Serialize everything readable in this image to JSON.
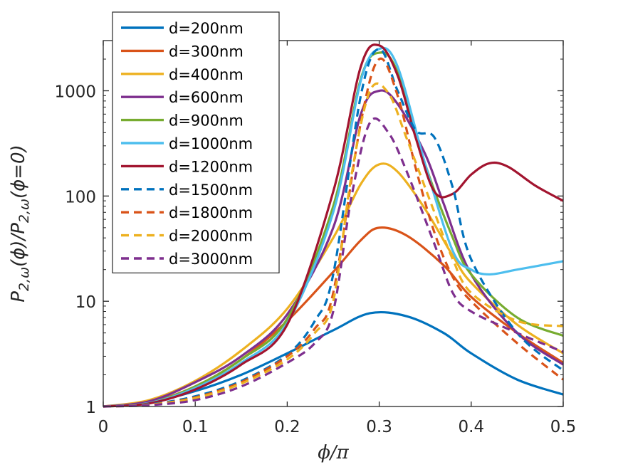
{
  "chart_data": {
    "type": "line",
    "yscale": "log",
    "xlim": [
      0,
      0.5
    ],
    "ylim": [
      1,
      3000
    ],
    "xticks": [
      0,
      0.1,
      0.2,
      0.3,
      0.4,
      0.5
    ],
    "xtick_labels": [
      "0",
      "0.1",
      "0.2",
      "0.3",
      "0.4",
      "0.5"
    ],
    "yticks": [
      1,
      10,
      100,
      1000
    ],
    "ytick_labels": [
      "1",
      "10",
      "100",
      "1000"
    ],
    "xlabel": "ϕ/π",
    "ylabel": "P2,ω(ϕ)/P2,ω(ϕ=0)",
    "legend_position": "top-left",
    "series": [
      {
        "name": "d=200nm",
        "color": "#0072BD",
        "dash": "solid",
        "x": [
          0,
          0.05,
          0.1,
          0.15,
          0.2,
          0.25,
          0.29,
          0.33,
          0.37,
          0.4,
          0.45,
          0.5
        ],
        "y": [
          1,
          1.1,
          1.4,
          2.0,
          3.2,
          5.3,
          7.7,
          7.2,
          5.0,
          3.2,
          1.8,
          1.3
        ]
      },
      {
        "name": "d=300nm",
        "color": "#D95319",
        "dash": "solid",
        "x": [
          0,
          0.05,
          0.1,
          0.15,
          0.2,
          0.25,
          0.28,
          0.3,
          0.33,
          0.37,
          0.4,
          0.45,
          0.5
        ],
        "y": [
          1,
          1.1,
          1.55,
          2.8,
          6.5,
          19,
          38,
          50,
          42,
          22,
          11,
          5,
          2.6
        ]
      },
      {
        "name": "d=400nm",
        "color": "#EDB120",
        "dash": "solid",
        "x": [
          0,
          0.05,
          0.1,
          0.15,
          0.2,
          0.25,
          0.28,
          0.3,
          0.32,
          0.35,
          0.38,
          0.4,
          0.45,
          0.5
        ],
        "y": [
          1,
          1.15,
          1.75,
          3.4,
          8.5,
          40,
          130,
          200,
          170,
          75,
          27,
          15,
          6,
          3.2
        ]
      },
      {
        "name": "d=600nm",
        "color": "#7E2F8E",
        "dash": "solid",
        "x": [
          0,
          0.05,
          0.1,
          0.15,
          0.2,
          0.25,
          0.28,
          0.3,
          0.32,
          0.35,
          0.37,
          0.4,
          0.45,
          0.5
        ],
        "y": [
          1,
          1.12,
          1.7,
          3.0,
          7.5,
          50,
          600,
          1000,
          750,
          250,
          85,
          18,
          5,
          2.5
        ]
      },
      {
        "name": "d=900nm",
        "color": "#77AC30",
        "dash": "solid",
        "x": [
          0,
          0.05,
          0.1,
          0.15,
          0.2,
          0.25,
          0.28,
          0.3,
          0.32,
          0.35,
          0.38,
          0.4,
          0.45,
          0.5
        ],
        "y": [
          1,
          1.08,
          1.55,
          2.8,
          6.8,
          80,
          1300,
          2300,
          1500,
          200,
          40,
          18,
          7,
          4.7
        ]
      },
      {
        "name": "d=1000nm",
        "color": "#4DBEEE",
        "dash": "solid",
        "x": [
          0,
          0.05,
          0.1,
          0.15,
          0.2,
          0.25,
          0.28,
          0.3,
          0.32,
          0.35,
          0.38,
          0.4,
          0.42,
          0.45,
          0.5
        ],
        "y": [
          1,
          1.08,
          1.5,
          2.6,
          6.2,
          70,
          1250,
          2500,
          1700,
          200,
          30,
          20,
          18,
          20,
          24
        ]
      },
      {
        "name": "d=1200nm",
        "color": "#A2142F",
        "dash": "solid",
        "x": [
          0,
          0.05,
          0.1,
          0.15,
          0.2,
          0.25,
          0.28,
          0.3,
          0.32,
          0.34,
          0.36,
          0.38,
          0.4,
          0.42,
          0.44,
          0.47,
          0.5
        ],
        "y": [
          1,
          1.07,
          1.45,
          2.5,
          6.0,
          110,
          1700,
          2700,
          1400,
          350,
          110,
          105,
          160,
          205,
          190,
          125,
          90
        ]
      },
      {
        "name": "d=1500nm",
        "color": "#0072BD",
        "dash": "dashed",
        "x": [
          0,
          0.05,
          0.1,
          0.15,
          0.2,
          0.23,
          0.25,
          0.28,
          0.3,
          0.32,
          0.34,
          0.36,
          0.38,
          0.4,
          0.45,
          0.5
        ],
        "y": [
          1,
          1.05,
          1.25,
          1.75,
          3.1,
          6.5,
          18,
          900,
          2500,
          1000,
          420,
          360,
          120,
          25,
          5,
          2.2
        ]
      },
      {
        "name": "d=1800nm",
        "color": "#D95319",
        "dash": "dashed",
        "x": [
          0,
          0.05,
          0.1,
          0.15,
          0.2,
          0.23,
          0.25,
          0.28,
          0.3,
          0.32,
          0.34,
          0.36,
          0.38,
          0.4,
          0.45,
          0.5
        ],
        "y": [
          1,
          1.04,
          1.22,
          1.7,
          3.0,
          5.5,
          12,
          500,
          2000,
          900,
          180,
          45,
          17,
          10,
          4,
          1.8
        ]
      },
      {
        "name": "d=2000nm",
        "color": "#EDB120",
        "dash": "dashed",
        "x": [
          0,
          0.05,
          0.1,
          0.15,
          0.2,
          0.23,
          0.25,
          0.27,
          0.29,
          0.31,
          0.33,
          0.36,
          0.38,
          0.4,
          0.45,
          0.5
        ],
        "y": [
          1,
          1.04,
          1.2,
          1.65,
          2.8,
          5,
          10,
          160,
          1000,
          950,
          350,
          70,
          25,
          12,
          6.5,
          5.8
        ]
      },
      {
        "name": "d=3000nm",
        "color": "#7E2F8E",
        "dash": "dashed",
        "x": [
          0,
          0.05,
          0.1,
          0.15,
          0.2,
          0.23,
          0.25,
          0.27,
          0.29,
          0.31,
          0.33,
          0.36,
          0.38,
          0.4,
          0.45,
          0.5
        ],
        "y": [
          1,
          1.03,
          1.15,
          1.55,
          2.6,
          4,
          8,
          100,
          500,
          400,
          170,
          35,
          12,
          8,
          5,
          3.3
        ]
      }
    ]
  }
}
